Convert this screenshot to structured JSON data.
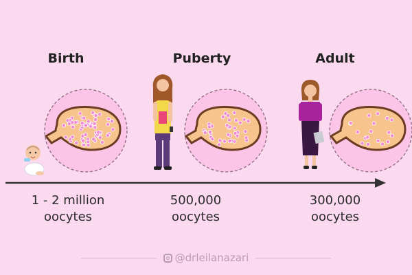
{
  "stages": [
    {
      "title": "Birth",
      "count_line1": "1 - 2 million",
      "count_line2": "oocytes"
    },
    {
      "title": "Puberty",
      "count_line1": "500,000",
      "count_line2": "oocytes"
    },
    {
      "title": "Adult",
      "count_line1": "300,000",
      "count_line2": "oocytes"
    }
  ],
  "watermark": "@drleilanazari",
  "colors": {
    "background": "#fbd9ef",
    "ovary_fill": "#f6c48c",
    "ovary_outline": "#6b3c22",
    "follicle": "#f08ad2",
    "magnifier_fill": "#fcc4e6",
    "timeline": "#333333"
  }
}
